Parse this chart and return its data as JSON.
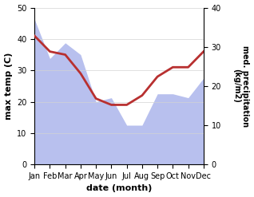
{
  "months": [
    "Jan",
    "Feb",
    "Mar",
    "Apr",
    "May",
    "Jun",
    "Jul",
    "Aug",
    "Sep",
    "Oct",
    "Nov",
    "Dec"
  ],
  "temp": [
    41,
    36,
    35,
    29,
    21,
    19,
    19,
    22,
    28,
    31,
    31,
    36
  ],
  "rainfall": [
    37,
    27,
    31,
    28,
    16,
    17,
    10,
    10,
    18,
    18,
    17,
    22
  ],
  "temp_color": "#b83030",
  "rain_fill_color": "#b8c0ee",
  "temp_ylim": [
    0,
    50
  ],
  "rain_ylim": [
    0,
    40
  ],
  "temp_yticks": [
    0,
    10,
    20,
    30,
    40,
    50
  ],
  "rain_yticks": [
    0,
    10,
    20,
    30,
    40
  ],
  "xlabel": "date (month)",
  "ylabel_left": "max temp (C)",
  "ylabel_right": "med. precipitation\n(kg/m2)",
  "bg_color": "#ffffff"
}
